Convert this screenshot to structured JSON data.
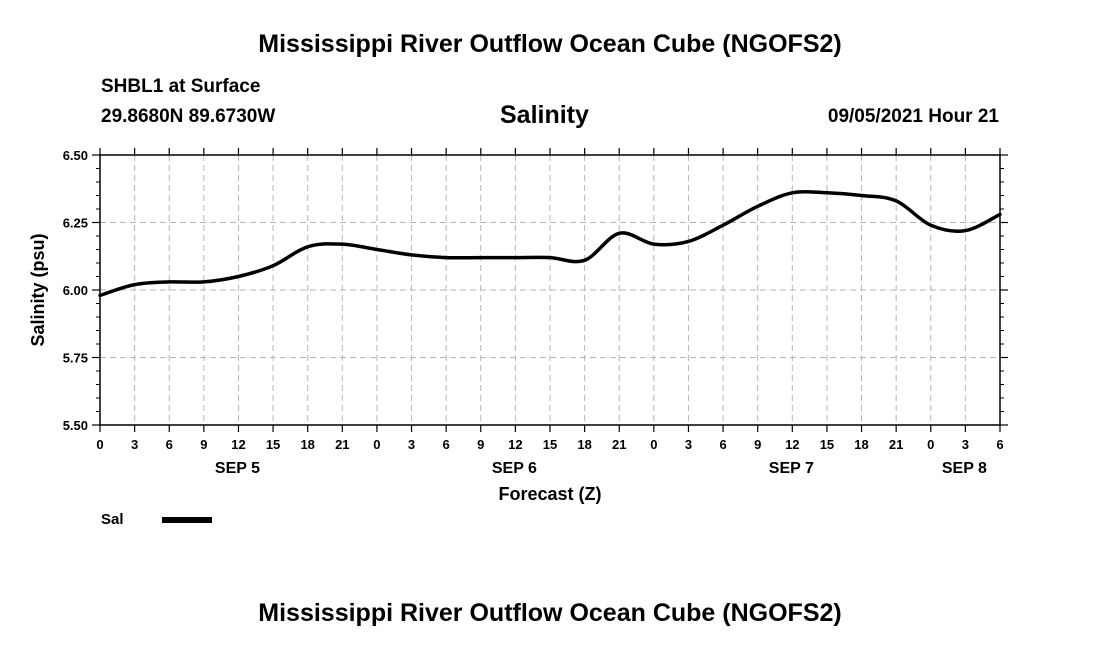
{
  "header": {
    "title_top": "Mississippi River Outflow Ocean Cube (NGOFS2)",
    "station": "SHBL1 at Surface",
    "coordinates": "29.8680N  89.6730W",
    "datetime": "09/05/2021 Hour 21",
    "title_bottom": "Mississippi River Outflow Ocean Cube (NGOFS2)"
  },
  "chart_data": {
    "type": "line",
    "title": "Salinity",
    "xlabel": "Forecast (Z)",
    "ylabel": "Salinity (psu)",
    "ylim": [
      5.5,
      6.5
    ],
    "yticks": [
      "5.50",
      "5.75",
      "6.00",
      "6.25",
      "6.50"
    ],
    "xlim_hours": [
      0,
      78
    ],
    "xtick_labels": [
      "0",
      "3",
      "6",
      "9",
      "12",
      "15",
      "18",
      "21",
      "0",
      "3",
      "6",
      "9",
      "12",
      "15",
      "18",
      "21",
      "0",
      "3",
      "6",
      "9",
      "12",
      "15",
      "18",
      "21",
      "0",
      "3",
      "6"
    ],
    "day_labels": [
      {
        "label": "SEP 5",
        "hour": 12
      },
      {
        "label": "SEP 6",
        "hour": 36
      },
      {
        "label": "SEP 7",
        "hour": 60
      },
      {
        "label": "SEP 8",
        "hour": 75
      }
    ],
    "grid": true,
    "legend": "bottom-left",
    "series": [
      {
        "name": "Sal",
        "color": "#000000",
        "x_hours": [
          0,
          3,
          6,
          9,
          12,
          15,
          18,
          21,
          24,
          27,
          30,
          33,
          36,
          39,
          42,
          45,
          48,
          51,
          54,
          57,
          60,
          63,
          66,
          69,
          72,
          75,
          78
        ],
        "values": [
          5.98,
          6.02,
          6.03,
          6.03,
          6.05,
          6.09,
          6.16,
          6.17,
          6.15,
          6.13,
          6.12,
          6.12,
          6.12,
          6.12,
          6.11,
          6.21,
          6.17,
          6.18,
          6.24,
          6.31,
          6.36,
          6.36,
          6.35,
          6.33,
          6.24,
          6.22,
          6.28
        ]
      }
    ]
  }
}
